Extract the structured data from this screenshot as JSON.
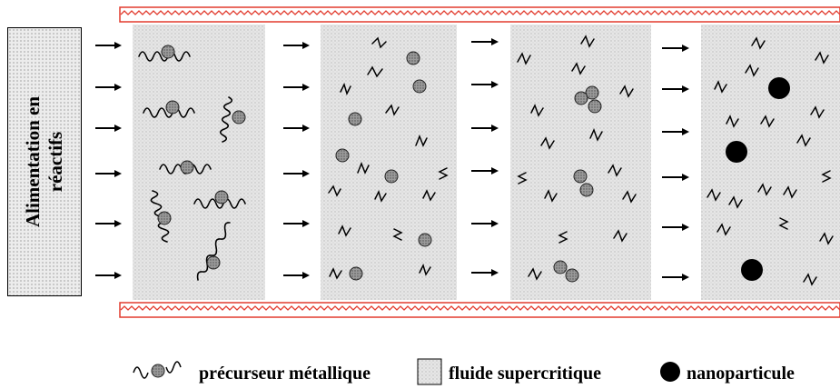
{
  "feed": {
    "line1": "Alimentation en",
    "line2": "réactifs"
  },
  "legend": {
    "precursor_label": "précurseur métallique",
    "fluid_label": "fluide supercritique",
    "nanoparticle_label": "nanoparticule"
  },
  "icons": {
    "precursor": "squiggle-with-dotted-sphere",
    "fluid": "gray-dotted-square",
    "nanoparticle": "black-filled-circle",
    "flow": "right-arrow"
  },
  "colors": {
    "wall_stripe": "#e23b2e",
    "fluid": "#e6e6e6",
    "fluid_dots": "#b9b9b9",
    "sphere": "#8e8e8e",
    "nanoparticle": "#000000"
  },
  "stages": [
    {
      "name": "stage-1",
      "content": "intact precursors (ligand chains attached to metal spheres)"
    },
    {
      "name": "stage-2",
      "content": "free ligands and isolated metal atoms"
    },
    {
      "name": "stage-3",
      "content": "metal atoms grouping into clusters"
    },
    {
      "name": "stage-4",
      "content": "nanoparticles with free ligands"
    }
  ]
}
